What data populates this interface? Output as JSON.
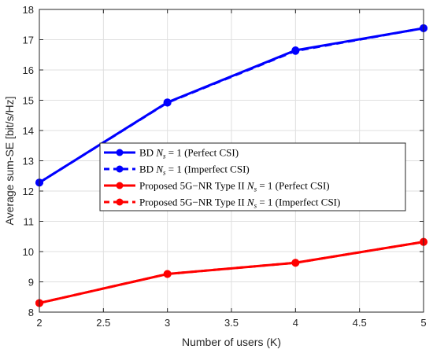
{
  "chart_data": {
    "type": "line",
    "title": "",
    "xlabel": "Number of users (K)",
    "ylabel": "Average sum-SE [bit/s/Hz]",
    "xlim": [
      2,
      5
    ],
    "ylim": [
      8,
      18
    ],
    "xticks": [
      2,
      2.5,
      3,
      3.5,
      4,
      4.5,
      5
    ],
    "xtick_labels": [
      "2",
      "2.5",
      "3",
      "3.5",
      "4",
      "4.5",
      "5"
    ],
    "yticks": [
      8,
      9,
      10,
      11,
      12,
      13,
      14,
      15,
      16,
      17,
      18
    ],
    "ytick_labels": [
      "8",
      "9",
      "10",
      "11",
      "12",
      "13",
      "14",
      "15",
      "16",
      "17",
      "18"
    ],
    "grid": true,
    "legend_position": "center-right",
    "x": [
      2,
      3,
      4,
      5
    ],
    "series": [
      {
        "name": "BD N_s = 1 (Perfect CSI)",
        "legend_prefix": "BD ",
        "legend_suffix": " (Perfect CSI)",
        "values": [
          12.28,
          14.93,
          16.65,
          17.38
        ],
        "color": "#0000ff",
        "style": "solid"
      },
      {
        "name": "BD N_s = 1 (Imperfect CSI)",
        "legend_prefix": "BD ",
        "legend_suffix": " (Imperfect CSI)",
        "values": [
          12.28,
          14.92,
          16.63,
          17.38
        ],
        "color": "#0000ff",
        "style": "dashed"
      },
      {
        "name": "Proposed 5G−NR Type II N_s = 1 (Perfect CSI)",
        "legend_prefix": "Proposed 5G−NR Type II ",
        "legend_suffix": " (Perfect CSI)",
        "values": [
          8.3,
          9.26,
          9.63,
          10.32
        ],
        "color": "#ff0000",
        "style": "solid"
      },
      {
        "name": "Proposed 5G−NR Type II N_s = 1 (Imperfect CSI)",
        "legend_prefix": "Proposed 5G−NR Type II ",
        "legend_suffix": " (Imperfect CSI)",
        "values": [
          8.3,
          9.26,
          9.63,
          10.32
        ],
        "color": "#ff0000",
        "style": "dashed"
      }
    ]
  }
}
